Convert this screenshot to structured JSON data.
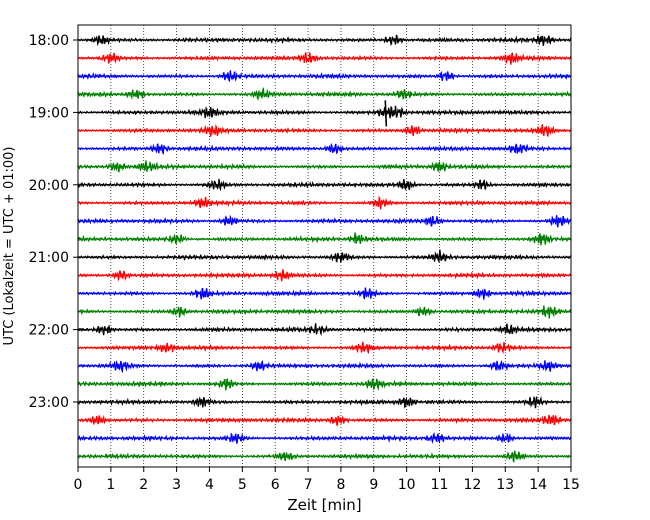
{
  "chart_data": {
    "type": "line",
    "title": "",
    "xlabel": "Zeit  [min]",
    "ylabel": "UTC (Lokalzeit = UTC + 01:00)",
    "xlim": [
      0,
      15
    ],
    "x_ticks": [
      "0",
      "1",
      "2",
      "3",
      "4",
      "5",
      "6",
      "7",
      "8",
      "9",
      "10",
      "11",
      "12",
      "13",
      "14",
      "15"
    ],
    "y_tick_labels": [
      "18:00",
      "19:00",
      "20:00",
      "21:00",
      "22:00",
      "23:00"
    ],
    "grid": "vertical dotted lines at each minute",
    "trace_interval_minutes": 15,
    "trace_color_cycle": [
      "#000000",
      "#ff0000",
      "#0000ff",
      "#008000"
    ],
    "traces": [
      {
        "start": "18:00",
        "color": "#000000",
        "events_min": [
          0.7,
          9.6,
          14.2
        ]
      },
      {
        "start": "18:15",
        "color": "#ff0000",
        "events_min": [
          1.0,
          7.0,
          13.2
        ]
      },
      {
        "start": "18:30",
        "color": "#0000ff",
        "events_min": [
          4.6,
          11.2
        ]
      },
      {
        "start": "18:45",
        "color": "#008000",
        "events_min": [
          1.8,
          5.6,
          9.9
        ]
      },
      {
        "start": "19:00",
        "color": "#000000",
        "events_min": [
          4.0,
          9.35,
          9.7
        ]
      },
      {
        "start": "19:15",
        "color": "#ff0000",
        "events_min": [
          4.1,
          10.2,
          14.2
        ]
      },
      {
        "start": "19:30",
        "color": "#0000ff",
        "events_min": [
          2.5,
          7.8,
          13.4
        ]
      },
      {
        "start": "19:45",
        "color": "#008000",
        "events_min": [
          1.2,
          2.1,
          11.0
        ]
      },
      {
        "start": "20:00",
        "color": "#000000",
        "events_min": [
          4.2,
          10.0,
          12.3
        ]
      },
      {
        "start": "20:15",
        "color": "#ff0000",
        "events_min": [
          3.8,
          9.2
        ]
      },
      {
        "start": "20:30",
        "color": "#0000ff",
        "events_min": [
          4.6,
          10.8,
          14.6
        ]
      },
      {
        "start": "20:45",
        "color": "#008000",
        "events_min": [
          3.0,
          8.5,
          14.1
        ]
      },
      {
        "start": "21:00",
        "color": "#000000",
        "events_min": [
          8.0,
          11.0
        ]
      },
      {
        "start": "21:15",
        "color": "#ff0000",
        "events_min": [
          1.3,
          6.2
        ]
      },
      {
        "start": "21:30",
        "color": "#0000ff",
        "events_min": [
          3.8,
          8.8,
          12.3
        ]
      },
      {
        "start": "21:45",
        "color": "#008000",
        "events_min": [
          3.1,
          10.5,
          14.3
        ]
      },
      {
        "start": "22:00",
        "color": "#000000",
        "events_min": [
          0.8,
          7.3,
          13.1
        ]
      },
      {
        "start": "22:15",
        "color": "#ff0000",
        "events_min": [
          2.7,
          8.7,
          12.9
        ]
      },
      {
        "start": "22:30",
        "color": "#0000ff",
        "events_min": [
          1.3,
          5.5,
          12.8,
          14.3
        ]
      },
      {
        "start": "22:45",
        "color": "#008000",
        "events_min": [
          4.5,
          9.0
        ]
      },
      {
        "start": "23:00",
        "color": "#000000",
        "events_min": [
          3.8,
          10.0,
          13.9
        ]
      },
      {
        "start": "23:15",
        "color": "#ff0000",
        "events_min": [
          0.6,
          7.9,
          14.4
        ]
      },
      {
        "start": "23:30",
        "color": "#0000ff",
        "events_min": [
          4.8,
          10.9,
          13.0
        ]
      },
      {
        "start": "23:45",
        "color": "#008000",
        "events_min": [
          6.3,
          13.3
        ]
      }
    ]
  }
}
